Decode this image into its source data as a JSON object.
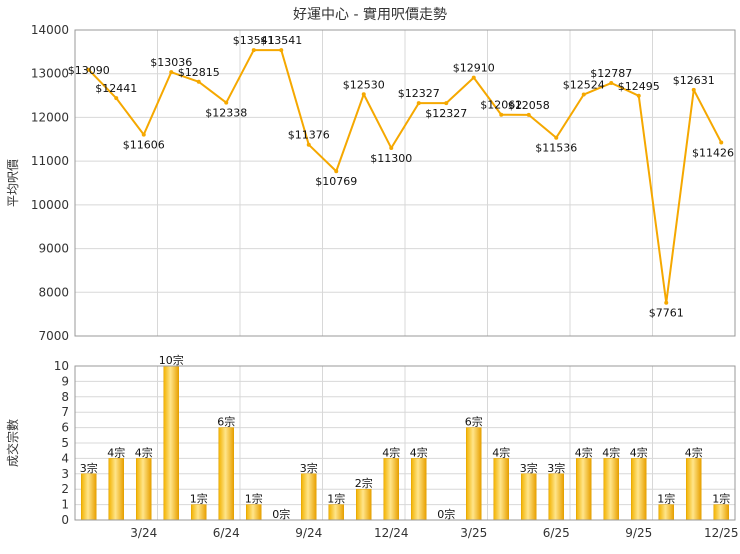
{
  "chart_data": [
    {
      "type": "line",
      "title": "好運中心 - 實用呎價走勢",
      "ylabel": "平均呎價",
      "ylim": [
        7000,
        14000
      ],
      "yticks": [
        7000,
        8000,
        9000,
        10000,
        11000,
        12000,
        13000,
        14000
      ],
      "color": "#f5a800",
      "series": [
        {
          "labels": [
            "$13090",
            "$12441",
            "$11606",
            "$13036",
            "$12815",
            "$12338",
            "$13541",
            "$13541",
            "$11376",
            "$10769",
            "$12530",
            "$11300",
            "$12327",
            "$12327",
            "$12910",
            "$12062",
            "$12058",
            "$11536",
            "$12524",
            "$12787",
            "$12495",
            "$7761",
            "$12631",
            "$11426"
          ],
          "values": [
            13090,
            12441,
            11606,
            13036,
            12815,
            12338,
            13541,
            13541,
            11376,
            10769,
            12530,
            11300,
            12327,
            12327,
            12910,
            12062,
            12058,
            11536,
            12524,
            12787,
            12495,
            7761,
            12631,
            11426
          ],
          "x_months": [
            0,
            1,
            2,
            3,
            4,
            5,
            6,
            7,
            8,
            9,
            10,
            11,
            12,
            13,
            14,
            15,
            16,
            17,
            18,
            19,
            20,
            21,
            22,
            23
          ]
        }
      ],
      "grid": true
    },
    {
      "type": "bar",
      "ylabel": "成交宗數",
      "ylim": [
        0,
        10
      ],
      "yticks": [
        0,
        1,
        2,
        3,
        4,
        5,
        6,
        7,
        8,
        9,
        10
      ],
      "color": "#f5a800",
      "categories": [
        "2024-01",
        "2024-02",
        "2024-03",
        "2024-04",
        "2024-05",
        "2024-06",
        "2024-07",
        "2024-08",
        "2024-09",
        "2024-10",
        "2024-11",
        "2024-12",
        "2025-01",
        "2025-02",
        "2025-03",
        "2025-04",
        "2025-05",
        "2025-06",
        "2025-07",
        "2025-08",
        "2025-09",
        "2025-10",
        "2025-11",
        "2025-12"
      ],
      "values": [
        3,
        4,
        4,
        10,
        1,
        6,
        1,
        0,
        3,
        1,
        2,
        4,
        4,
        0,
        6,
        4,
        3,
        3,
        4,
        4,
        4,
        1,
        4,
        1
      ],
      "labels": [
        "3宗",
        "4宗",
        "4宗",
        "10宗",
        "1宗",
        "6宗",
        "1宗",
        "0宗",
        "3宗",
        "1宗",
        "2宗",
        "4宗",
        "4宗",
        "0宗",
        "6宗",
        "4宗",
        "3宗",
        "3宗",
        "4宗",
        "4宗",
        "4宗",
        "1宗",
        "4宗",
        "1宗"
      ],
      "x_tick_labels": [
        {
          "month_index": 2,
          "label": "3/24"
        },
        {
          "month_index": 5,
          "label": "6/24"
        },
        {
          "month_index": 8,
          "label": "9/24"
        },
        {
          "month_index": 11,
          "label": "12/24"
        },
        {
          "month_index": 14,
          "label": "3/25"
        },
        {
          "month_index": 17,
          "label": "6/25"
        },
        {
          "month_index": 20,
          "label": "9/25"
        },
        {
          "month_index": 23,
          "label": "12/25"
        }
      ],
      "grid": true
    }
  ]
}
